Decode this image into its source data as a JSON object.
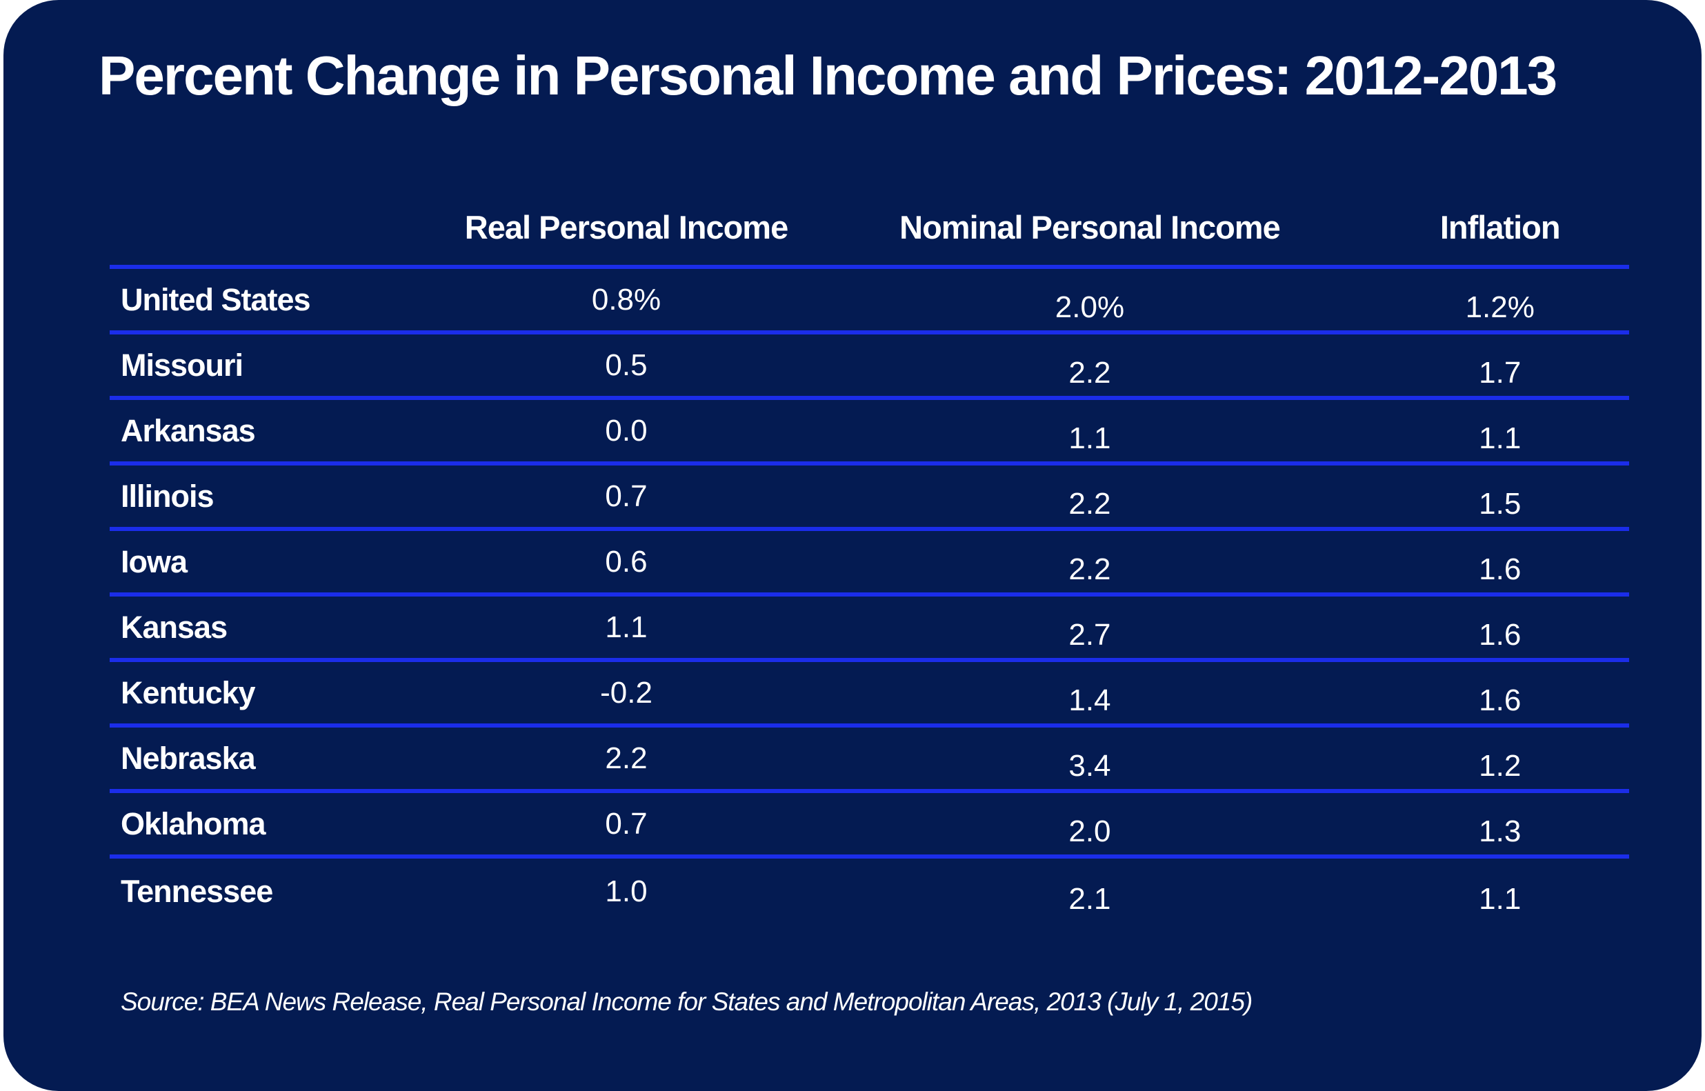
{
  "colors": {
    "page_background": "#ffffff",
    "card_background": "#041b52",
    "divider": "#1b2de9",
    "text": "#ffffff"
  },
  "title": "Percent Change in Personal Income and Prices: 2012-2013",
  "table": {
    "headers": {
      "col1": "",
      "col2": "Real Personal Income",
      "col3": "Nominal Personal Income",
      "col4": "Inflation"
    },
    "rows": [
      {
        "label": "United States",
        "real": "0.8%",
        "nominal": "2.0%",
        "inflation": "1.2%"
      },
      {
        "label": "Missouri",
        "real": "0.5",
        "nominal": "2.2",
        "inflation": "1.7"
      },
      {
        "label": "Arkansas",
        "real": "0.0",
        "nominal": "1.1",
        "inflation": "1.1"
      },
      {
        "label": "Illinois",
        "real": "0.7",
        "nominal": "2.2",
        "inflation": "1.5"
      },
      {
        "label": "Iowa",
        "real": "0.6",
        "nominal": "2.2",
        "inflation": "1.6"
      },
      {
        "label": "Kansas",
        "real": "1.1",
        "nominal": "2.7",
        "inflation": "1.6"
      },
      {
        "label": "Kentucky",
        "real": "-0.2",
        "nominal": "1.4",
        "inflation": "1.6"
      },
      {
        "label": "Nebraska",
        "real": "2.2",
        "nominal": "3.4",
        "inflation": "1.2"
      },
      {
        "label": "Oklahoma",
        "real": "0.7",
        "nominal": "2.0",
        "inflation": "1.3"
      },
      {
        "label": "Tennessee",
        "real": "1.0",
        "nominal": "2.1",
        "inflation": "1.1"
      }
    ]
  },
  "source": "Source: BEA News Release, Real Personal Income for States and Metropolitan Areas, 2013 (July 1, 2015)",
  "chart_data": {
    "type": "table",
    "title": "Percent Change in Personal Income and Prices: 2012-2013",
    "categories": [
      "United States",
      "Missouri",
      "Arkansas",
      "Illinois",
      "Iowa",
      "Kansas",
      "Kentucky",
      "Nebraska",
      "Oklahoma",
      "Tennessee"
    ],
    "series": [
      {
        "name": "Real Personal Income",
        "values": [
          0.8,
          0.5,
          0.0,
          0.7,
          0.6,
          1.1,
          -0.2,
          2.2,
          0.7,
          1.0
        ]
      },
      {
        "name": "Nominal Personal Income",
        "values": [
          2.0,
          2.2,
          1.1,
          2.2,
          2.2,
          2.7,
          1.4,
          3.4,
          2.0,
          2.1
        ]
      },
      {
        "name": "Inflation",
        "values": [
          1.2,
          1.7,
          1.1,
          1.5,
          1.6,
          1.6,
          1.6,
          1.2,
          1.3,
          1.1
        ]
      }
    ],
    "units": "percent",
    "source": "Source: BEA News Release, Real Personal Income for States and Metropolitan Areas, 2013 (July 1, 2015)"
  }
}
